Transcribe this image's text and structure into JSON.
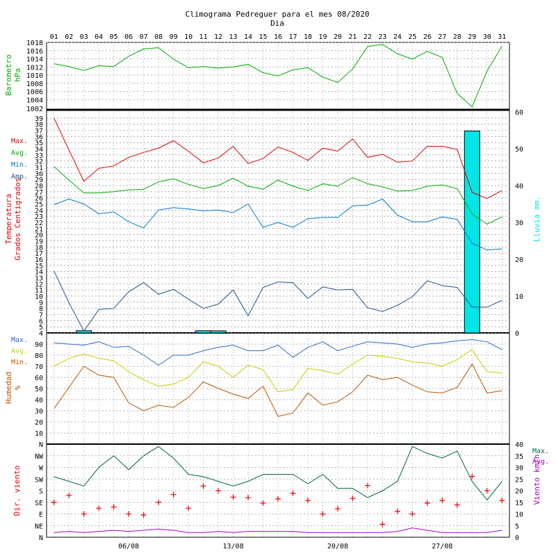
{
  "title": "Climograma Pedreguer para el mes 08/2020",
  "xlabel": "Dia",
  "day_labels": [
    "01",
    "02",
    "03",
    "04",
    "05",
    "06",
    "07",
    "08",
    "09",
    "10",
    "11",
    "12",
    "13",
    "14",
    "15",
    "16",
    "17",
    "18",
    "19",
    "20",
    "21",
    "22",
    "23",
    "24",
    "25",
    "26",
    "27",
    "28",
    "29",
    "30",
    "31"
  ],
  "week_labels": [
    "06/08",
    "13/08",
    "20/08",
    "27/08"
  ],
  "colors": {
    "pressure": "#00aa00",
    "tmax": "#dd0000",
    "tavg": "#00aa00",
    "tmin": "#0077cc",
    "amp": "#1f4f8f",
    "rain": "#00e5e5",
    "hmax": "#3366cc",
    "havg": "#cccc00",
    "hmin": "#bb5500",
    "wmax": "#006644",
    "wavg": "#aa00cc",
    "wdir": "#ee0000"
  },
  "chart_data": [
    {
      "type": "line",
      "panel": "pressure",
      "ylabel": [
        "Barometro",
        "hPa"
      ],
      "ylim": [
        1002,
        1018
      ],
      "y_ticks": [
        1004,
        1006,
        1008,
        1010,
        1012,
        1014,
        1016,
        1018
      ],
      "tick_labels_extra": [
        "1002"
      ],
      "series": [
        {
          "key": "pressure",
          "values": [
            1012.8,
            1012.1,
            1011.1,
            1012.3,
            1012.1,
            1014.6,
            1016.4,
            1016.7,
            1013.9,
            1011.8,
            1012.1,
            1011.7,
            1012.0,
            1012.6,
            1010.6,
            1009.8,
            1011.3,
            1011.8,
            1009.5,
            1008.2,
            1011.5,
            1017.0,
            1017.5,
            1015.2,
            1013.9,
            1015.8,
            1014.3,
            1005.5,
            1002.2,
            1011.0,
            1017.1
          ]
        }
      ]
    },
    {
      "type": "line+bar",
      "panel": "temperature",
      "ylabel": [
        "Temperatura",
        "Grados Centigrados"
      ],
      "legend": [
        "Max.",
        "Avg.",
        "Min.",
        "Amp."
      ],
      "ylim": [
        4,
        40
      ],
      "y_ticks": [
        4,
        5,
        6,
        7,
        8,
        9,
        10,
        11,
        12,
        13,
        14,
        15,
        16,
        17,
        18,
        19,
        20,
        21,
        22,
        23,
        24,
        25,
        26,
        27,
        28,
        29,
        30,
        31,
        32,
        33,
        34,
        35,
        36,
        37,
        38,
        39
      ],
      "y2label": "Lluvia mm.",
      "y2lim": [
        0,
        60
      ],
      "y2_ticks": [
        0,
        10,
        20,
        30,
        40,
        50,
        60
      ],
      "series": [
        {
          "key": "tmax",
          "values": [
            39.0,
            33.8,
            28.7,
            30.8,
            31.2,
            32.6,
            33.4,
            34.1,
            35.3,
            33.6,
            31.7,
            32.5,
            34.4,
            31.6,
            32.4,
            34.3,
            33.4,
            32.1,
            34.1,
            33.6,
            35.6,
            32.6,
            33.1,
            31.8,
            32.0,
            34.4,
            34.4,
            33.9,
            26.9,
            25.9,
            27.2
          ]
        },
        {
          "key": "tavg",
          "values": [
            31.1,
            28.9,
            26.8,
            26.8,
            27.0,
            27.3,
            27.4,
            28.6,
            29.1,
            28.2,
            27.5,
            28.0,
            29.2,
            27.9,
            27.4,
            28.9,
            27.9,
            27.2,
            28.3,
            27.9,
            29.3,
            28.3,
            27.8,
            27.1,
            27.2,
            27.9,
            28.1,
            27.5,
            23.4,
            21.7,
            22.9
          ]
        },
        {
          "key": "tmin",
          "values": [
            24.9,
            25.8,
            25.0,
            23.4,
            23.7,
            22.1,
            21.1,
            24.0,
            24.4,
            24.2,
            23.9,
            24.0,
            23.6,
            25.0,
            21.2,
            22.0,
            21.2,
            22.6,
            22.8,
            22.8,
            24.7,
            24.8,
            25.8,
            23.2,
            22.1,
            22.1,
            22.9,
            22.5,
            18.6,
            17.5,
            17.7
          ]
        },
        {
          "key": "amp",
          "values": [
            14.1,
            8.9,
            4.3,
            7.8,
            8.0,
            10.7,
            12.2,
            10.3,
            11.1,
            9.5,
            8.0,
            8.7,
            11.0,
            6.8,
            11.4,
            12.3,
            12.2,
            9.6,
            11.5,
            11.0,
            11.1,
            8.1,
            7.5,
            8.5,
            9.9,
            12.5,
            11.7,
            11.4,
            8.2,
            8.2,
            9.3
          ]
        }
      ],
      "rain": [
        0,
        0,
        0.6,
        0,
        0,
        0,
        0,
        0,
        0,
        0,
        0.6,
        0.3,
        0,
        0,
        0,
        0,
        0,
        0,
        0,
        0,
        0,
        0,
        0,
        0,
        0,
        0,
        0,
        0,
        54.8,
        0,
        0
      ]
    },
    {
      "type": "line",
      "panel": "humidity",
      "ylabel": [
        "Humedad",
        "%"
      ],
      "legend": [
        "Max.",
        "Avg.",
        "Min."
      ],
      "ylim": [
        0,
        100
      ],
      "y_ticks": [
        10,
        20,
        30,
        40,
        50,
        60,
        70,
        80,
        90
      ],
      "top_tick_label": "N",
      "series": [
        {
          "key": "hmax",
          "values": [
            91,
            90,
            89,
            92,
            87,
            88,
            80,
            71,
            80,
            80,
            84,
            87,
            89,
            84,
            84,
            89,
            78,
            87,
            92,
            84,
            88,
            92,
            91,
            90,
            87,
            90,
            91,
            93,
            94,
            92,
            85
          ]
        },
        {
          "key": "havg",
          "values": [
            70,
            77,
            81,
            77,
            75,
            65,
            58,
            52,
            54,
            60,
            74,
            70,
            60,
            71,
            67,
            47,
            49,
            68,
            66,
            63,
            72,
            80,
            79,
            77,
            74,
            73,
            70,
            76,
            85,
            65,
            64
          ]
        },
        {
          "key": "hmin",
          "values": [
            32,
            51,
            70,
            62,
            60,
            37,
            30,
            35,
            33,
            42,
            56,
            50,
            45,
            41,
            52,
            25,
            28,
            46,
            35,
            38,
            47,
            62,
            58,
            60,
            53,
            47,
            46,
            51,
            72,
            46,
            48
          ]
        }
      ]
    },
    {
      "type": "line+scatter",
      "panel": "wind",
      "ylabel": "Dir. viento",
      "y_dir_labels": [
        "N",
        "NE",
        "E",
        "SE",
        "S",
        "SW",
        "W",
        "NW"
      ],
      "y2label": "Viento km/h",
      "legend": [
        "Max.",
        "Avg."
      ],
      "y2lim": [
        0,
        40
      ],
      "y2_ticks": [
        0,
        5,
        10,
        15,
        20,
        25,
        30,
        35,
        40
      ],
      "series": [
        {
          "key": "wmax",
          "values": [
            26,
            24,
            22,
            30,
            35,
            29,
            35,
            39,
            34,
            27,
            26,
            24,
            22,
            24,
            27,
            27,
            27,
            23,
            27,
            21,
            21,
            17,
            20,
            24,
            39,
            36,
            34,
            37,
            24,
            16,
            24
          ]
        },
        {
          "key": "wavg",
          "values": [
            2,
            2.5,
            2,
            2.5,
            3,
            2.5,
            3,
            3.5,
            3,
            2,
            2,
            2.5,
            2,
            2.5,
            2.5,
            2.5,
            2.5,
            2,
            2,
            2,
            2,
            2,
            2,
            2.5,
            4,
            3,
            2,
            2,
            2,
            2,
            3
          ]
        }
      ],
      "direction_deg": [
        135,
        162,
        90,
        112,
        117,
        90,
        86,
        135,
        165,
        112,
        198,
        180,
        155,
        153,
        132,
        148,
        170,
        142,
        90,
        110,
        150,
        200,
        50,
        100,
        90,
        132,
        142,
        125,
        235,
        180,
        142
      ]
    }
  ]
}
